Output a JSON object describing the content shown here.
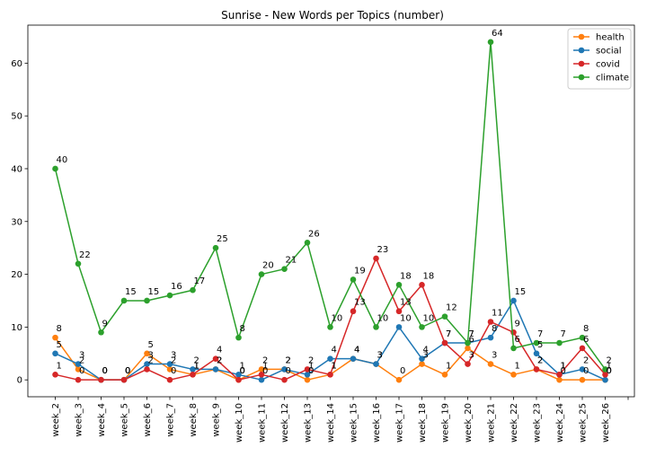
{
  "chart_data": {
    "type": "line",
    "title": "Sunrise - New Words per Topics (number)",
    "xlabel": "",
    "ylabel": "",
    "ylim": [
      -3.2,
      67.2
    ],
    "yticks": [
      0,
      10,
      20,
      30,
      40,
      50,
      60
    ],
    "grid": false,
    "legend_position": "top-right",
    "categories": [
      "week_2",
      "week_3",
      "week_4",
      "week_5",
      "week_6",
      "week_7",
      "week_8",
      "week_9",
      "week_10",
      "week_11",
      "week_12",
      "week_13",
      "week_14",
      "week_15",
      "week_16",
      "week_17",
      "week_18",
      "week_19",
      "week_20",
      "week_21",
      "week_22",
      "week_23",
      "week_24",
      "week_25",
      "week_26"
    ],
    "series": [
      {
        "name": "health",
        "color": "#ff7f0e",
        "values": [
          8,
          2,
          0,
          0,
          5,
          2,
          1,
          2,
          0,
          2,
          2,
          0,
          1,
          4,
          3,
          0,
          3,
          1,
          6,
          3,
          1,
          2,
          0,
          0,
          0
        ]
      },
      {
        "name": "social",
        "color": "#1f77b4",
        "values": [
          5,
          3,
          0,
          0,
          3,
          3,
          2,
          2,
          1,
          0,
          2,
          1,
          4,
          4,
          3,
          10,
          4,
          7,
          7,
          8,
          15,
          5,
          1,
          2,
          0
        ]
      },
      {
        "name": "covid",
        "color": "#d62728",
        "values": [
          1,
          0,
          0,
          0,
          2,
          0,
          1,
          4,
          0,
          1,
          0,
          2,
          1,
          13,
          23,
          13,
          18,
          7,
          3,
          11,
          9,
          2,
          1,
          6,
          1
        ]
      },
      {
        "name": "climate",
        "color": "#2ca02c",
        "values": [
          40,
          22,
          9,
          15,
          15,
          16,
          17,
          25,
          8,
          20,
          21,
          26,
          10,
          19,
          10,
          18,
          10,
          12,
          7,
          64,
          6,
          7,
          7,
          8,
          2
        ]
      }
    ]
  }
}
